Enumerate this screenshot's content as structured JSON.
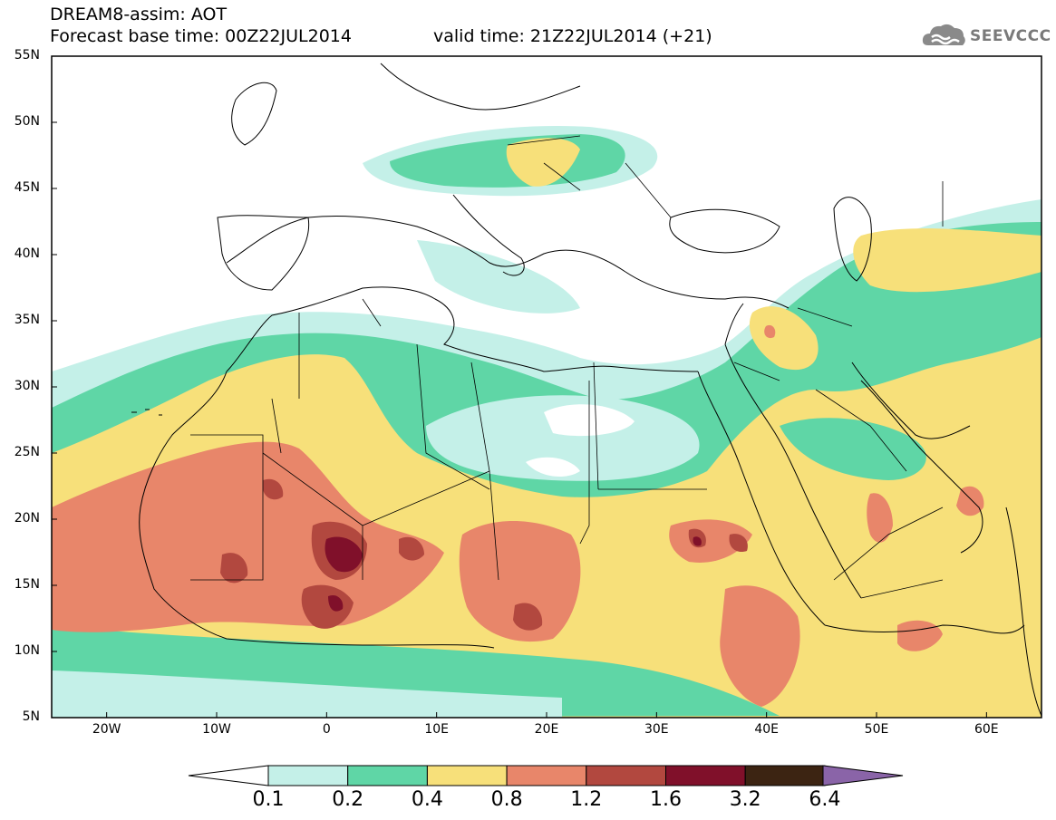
{
  "header": {
    "title": "DREAM8-assim: AOT",
    "base_time": "Forecast base time: 00Z22JUL2014",
    "valid_time": "valid time: 21Z22JUL2014 (+21)",
    "logo_text": "SEEVCCC"
  },
  "map": {
    "projection": "lat-lon",
    "lon_range": [
      -25,
      65
    ],
    "lat_range": [
      5,
      55
    ],
    "lat_labels": [
      "55N",
      "50N",
      "45N",
      "40N",
      "35N",
      "30N",
      "25N",
      "20N",
      "15N",
      "10N",
      "5N"
    ],
    "lon_labels": [
      "20W",
      "10W",
      "0",
      "10E",
      "20E",
      "30E",
      "40E",
      "50E",
      "60E"
    ]
  },
  "colorbar": {
    "levels": [
      "0.1",
      "0.2",
      "0.4",
      "0.8",
      "1.2",
      "1.6",
      "3.2",
      "6.4"
    ],
    "colors": [
      "#c4f0e8",
      "#5fd6a6",
      "#f7e07a",
      "#e8866a",
      "#b2483f",
      "#80102a",
      "#3c2412",
      "#8a64a8"
    ]
  }
}
